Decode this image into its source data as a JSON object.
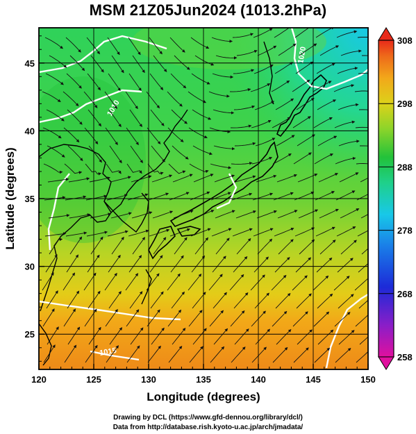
{
  "title": "MSM 21Z05Jun2024 (1013.2hPa)",
  "axes": {
    "xlabel": "Longitude (degrees)",
    "ylabel": "Latitude  (degrees)",
    "xlim": [
      120,
      150
    ],
    "ylim": [
      22.4,
      47.6
    ],
    "xticks": [
      "120",
      "125",
      "130",
      "135",
      "140",
      "145",
      "150"
    ],
    "yticks": [
      "25",
      "30",
      "35",
      "40",
      "45"
    ]
  },
  "colorbar": {
    "range": [
      258,
      308
    ],
    "tick_labels": [
      "308",
      "298",
      "288",
      "278",
      "268",
      "258"
    ],
    "colors": [
      "#e0109e",
      "#8a1ec8",
      "#1c2ad8",
      "#1a7ee8",
      "#18c8e8",
      "#1fd08a",
      "#22c23a",
      "#8cd42a",
      "#dcd21a",
      "#f2a81a",
      "#ee6a1a",
      "#e82a1a"
    ]
  },
  "contour_labels": [
    "1020",
    "1010",
    "1015"
  ],
  "credits": {
    "line1": "Drawing by DCL (https://www.gfd-dennou.org/library/dcl/)",
    "line2": "Data from http://database.rish.kyoto-u.ac.jp/arch/jmadata/"
  }
}
